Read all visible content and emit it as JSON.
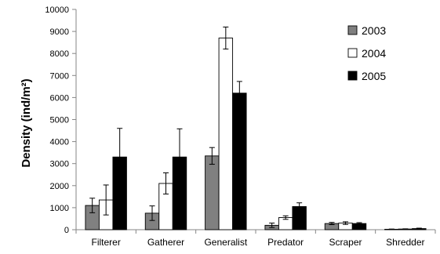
{
  "chart_data": {
    "type": "bar",
    "title": "",
    "xlabel": "",
    "ylabel": "Density (ind/m²)",
    "ylim": [
      0,
      10000
    ],
    "yticks": [
      0,
      1000,
      2000,
      3000,
      4000,
      5000,
      6000,
      7000,
      8000,
      9000,
      10000
    ],
    "categories": [
      "Filterer",
      "Gatherer",
      "Generalist",
      "Predator",
      "Scraper",
      "Shredder"
    ],
    "grid": false,
    "legend_position": "right",
    "series": [
      {
        "name": "2003",
        "color": "#808080",
        "values": [
          1100,
          750,
          3350,
          200,
          280,
          20
        ],
        "errors": [
          330,
          330,
          380,
          100,
          50,
          10
        ]
      },
      {
        "name": "2004",
        "color": "#ffffff",
        "values": [
          1350,
          2100,
          8700,
          550,
          300,
          30
        ],
        "errors": [
          680,
          480,
          500,
          80,
          60,
          10
        ]
      },
      {
        "name": "2005",
        "color": "#000000",
        "values": [
          3300,
          3300,
          6200,
          1050,
          280,
          50
        ],
        "errors": [
          1300,
          1280,
          530,
          170,
          40,
          20
        ]
      }
    ]
  }
}
